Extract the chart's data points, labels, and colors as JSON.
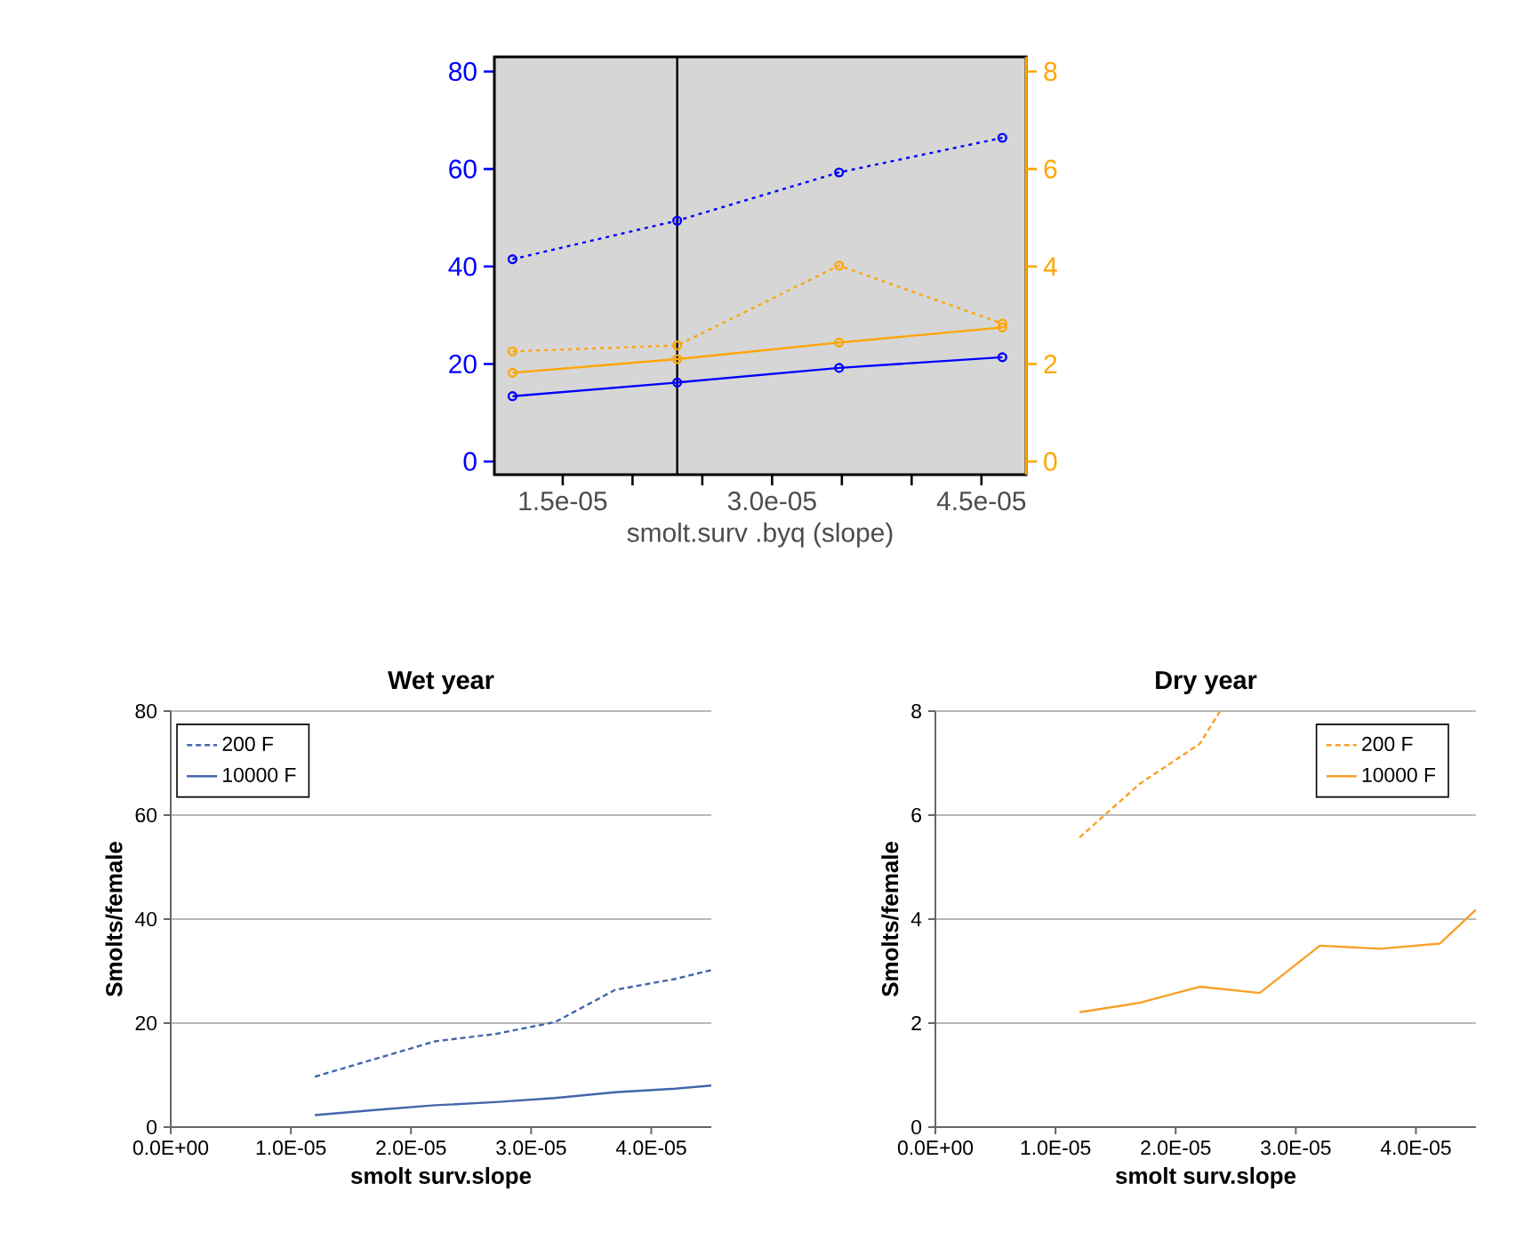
{
  "chart_data": [
    {
      "type": "line",
      "xlabel": "smolt.surv .byq (slope)",
      "xlim": [
        1.01e-05,
        4.82e-05
      ],
      "ylim": [
        -2.7,
        83
      ],
      "y2lim": [
        -0.27,
        8.3
      ],
      "xticks": [
        {
          "value": 1.5e-05,
          "label": "1.5e-05"
        },
        {
          "value": 2e-05,
          "label": null
        },
        {
          "value": 2.5e-05,
          "label": null
        },
        {
          "value": 3e-05,
          "label": "3.0e-05"
        },
        {
          "value": 3.5e-05,
          "label": null
        },
        {
          "value": 4e-05,
          "label": null
        },
        {
          "value": 4.5e-05,
          "label": "4.5e-05"
        }
      ],
      "yticks": [
        0,
        20,
        40,
        60,
        80
      ],
      "y2ticks": [
        0,
        2,
        4,
        6,
        8
      ],
      "marker": "circle",
      "x": [
        1.14e-05,
        2.32e-05,
        3.48e-05,
        4.65e-05
      ],
      "series": [
        {
          "color": "#0000ff",
          "line_style": "dotted",
          "values": [
            41.5,
            49.4,
            59.3,
            66.4
          ]
        },
        {
          "color": "#0000ff",
          "line_style": "solid",
          "values": [
            13.4,
            16.2,
            19.2,
            21.4
          ]
        },
        {
          "color": "#ffa500",
          "line_style": "dotted",
          "axis": "y2",
          "values": [
            2.26,
            2.38,
            4.02,
            2.83
          ]
        },
        {
          "color": "#ffa500",
          "line_style": "solid",
          "axis": "y2",
          "values": [
            1.82,
            2.1,
            2.44,
            2.75
          ]
        }
      ],
      "ref_lines": [
        {
          "axis": "x",
          "value": 2.32e-05,
          "color": "#000000"
        }
      ],
      "grid": false,
      "legend": false
    },
    {
      "type": "line",
      "title": "Wet year",
      "xlabel": "smolt surv.slope",
      "ylabel": "Smolts/female",
      "xlim": [
        0,
        4.5e-05
      ],
      "ylim": [
        0,
        80
      ],
      "xticks": [
        {
          "value": 0,
          "label": "0.0E+00"
        },
        {
          "value": 1e-05,
          "label": "1.0E-05"
        },
        {
          "value": 2e-05,
          "label": "2.0E-05"
        },
        {
          "value": 3e-05,
          "label": "3.0E-05"
        },
        {
          "value": 4e-05,
          "label": "4.0E-05"
        }
      ],
      "yticks": [
        0,
        20,
        40,
        60,
        80
      ],
      "grid": "y",
      "legend": "top left",
      "marker": "none",
      "x": [
        1.2e-05,
        1.7e-05,
        2.2e-05,
        2.7e-05,
        3.2e-05,
        3.7e-05,
        4.2e-05,
        4.5e-05
      ],
      "series": [
        {
          "name": "200 F",
          "color": "#4266ac",
          "line_style": "dashed",
          "values": [
            9.7,
            13.1,
            16.5,
            17.9,
            20.2,
            26.4,
            28.5,
            30.2
          ]
        },
        {
          "name": "10000 F",
          "color": "#4266ac",
          "line_style": "solid",
          "values": [
            2.3,
            3.3,
            4.2,
            4.8,
            5.6,
            6.7,
            7.4,
            8.0
          ]
        }
      ]
    },
    {
      "type": "line",
      "title": "Dry year",
      "xlabel": "smolt surv.slope",
      "ylabel": "Smolts/female",
      "xlim": [
        0,
        4.5e-05
      ],
      "ylim": [
        0,
        8
      ],
      "xticks": [
        {
          "value": 0,
          "label": "0.0E+00"
        },
        {
          "value": 1e-05,
          "label": "1.0E-05"
        },
        {
          "value": 2e-05,
          "label": "2.0E-05"
        },
        {
          "value": 3e-05,
          "label": "3.0E-05"
        },
        {
          "value": 4e-05,
          "label": "4.0E-05"
        }
      ],
      "yticks": [
        0,
        2,
        4,
        6,
        8
      ],
      "grid": "y",
      "legend": "top right",
      "marker": "none",
      "series": [
        {
          "name": "200 F",
          "color": "#f7a028",
          "line_style": "dashed",
          "x": [
            1.2e-05,
            1.7e-05,
            2.2e-05,
            2.37e-05
          ],
          "values": [
            5.57,
            6.6,
            7.37,
            8.0
          ]
        },
        {
          "name": "10000 F",
          "color": "#f7a028",
          "line_style": "solid",
          "x": [
            1.2e-05,
            1.7e-05,
            2.2e-05,
            2.7e-05,
            3.2e-05,
            3.7e-05,
            4.2e-05,
            4.5e-05
          ],
          "values": [
            2.21,
            2.39,
            2.7,
            2.58,
            3.49,
            3.43,
            3.53,
            4.18
          ]
        }
      ]
    }
  ]
}
